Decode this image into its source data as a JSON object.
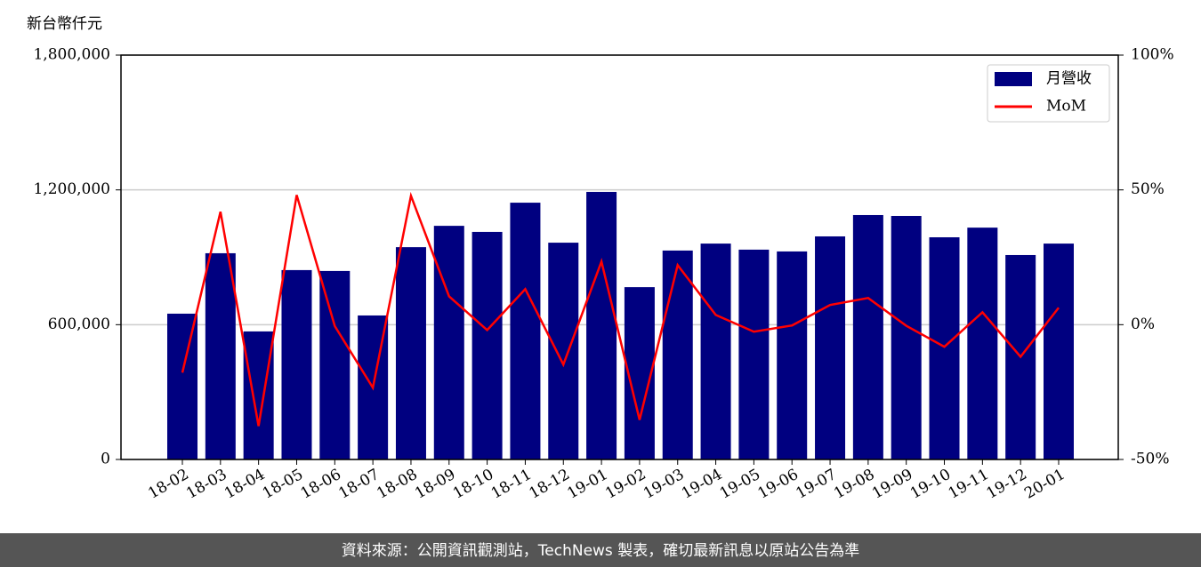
{
  "chart_data": {
    "type": "bar",
    "y_label": "新台幣仟元",
    "source": "資料來源：公開資訊觀測站，TechNews 製表，確切最新訊息以原站公告為準",
    "categories": [
      "18-02",
      "18-03",
      "18-04",
      "18-05",
      "18-06",
      "18-07",
      "18-08",
      "18-09",
      "18-10",
      "18-11",
      "18-12",
      "19-01",
      "19-02",
      "19-03",
      "19-04",
      "19-05",
      "19-06",
      "19-07",
      "19-08",
      "19-09",
      "19-10",
      "19-11",
      "19-12",
      "20-01"
    ],
    "series": [
      {
        "name": "月營收",
        "type": "bar",
        "color": "#000080",
        "values": [
          649000,
          918000,
          570000,
          843000,
          839000,
          641000,
          945000,
          1040000,
          1013000,
          1143000,
          965000,
          1191000,
          767000,
          930000,
          961000,
          934000,
          926000,
          993000,
          1088000,
          1084000,
          989000,
          1032000,
          910000,
          961000
        ]
      },
      {
        "name": "MoM",
        "type": "line",
        "axis": "y2",
        "color": "#ff0000",
        "values": [
          -17.8,
          41.9,
          -37.6,
          48.1,
          -0.5,
          -23.4,
          47.8,
          10.5,
          -2,
          13.2,
          -14.8,
          23.4,
          -35.3,
          22.1,
          3.6,
          -2.6,
          -0.3,
          7.3,
          9.9,
          -0.4,
          -8.2,
          4.6,
          -11.9,
          6.3
        ]
      }
    ],
    "ylim": [
      0,
      1800000
    ],
    "yticks": [
      {
        "value": 0,
        "label": "0"
      },
      {
        "value": 600000,
        "label": "600,000"
      },
      {
        "value": 1200000,
        "label": "1,200,000"
      },
      {
        "value": 1800000,
        "label": "1,800,000"
      }
    ],
    "y2lim": [
      -50,
      100
    ],
    "y2ticks": [
      {
        "value": -50,
        "label": "-50%"
      },
      {
        "value": 0,
        "label": "0%"
      },
      {
        "value": 50,
        "label": "50%"
      },
      {
        "value": 100,
        "label": "100%"
      }
    ],
    "grid": true,
    "legend": "upper right"
  }
}
